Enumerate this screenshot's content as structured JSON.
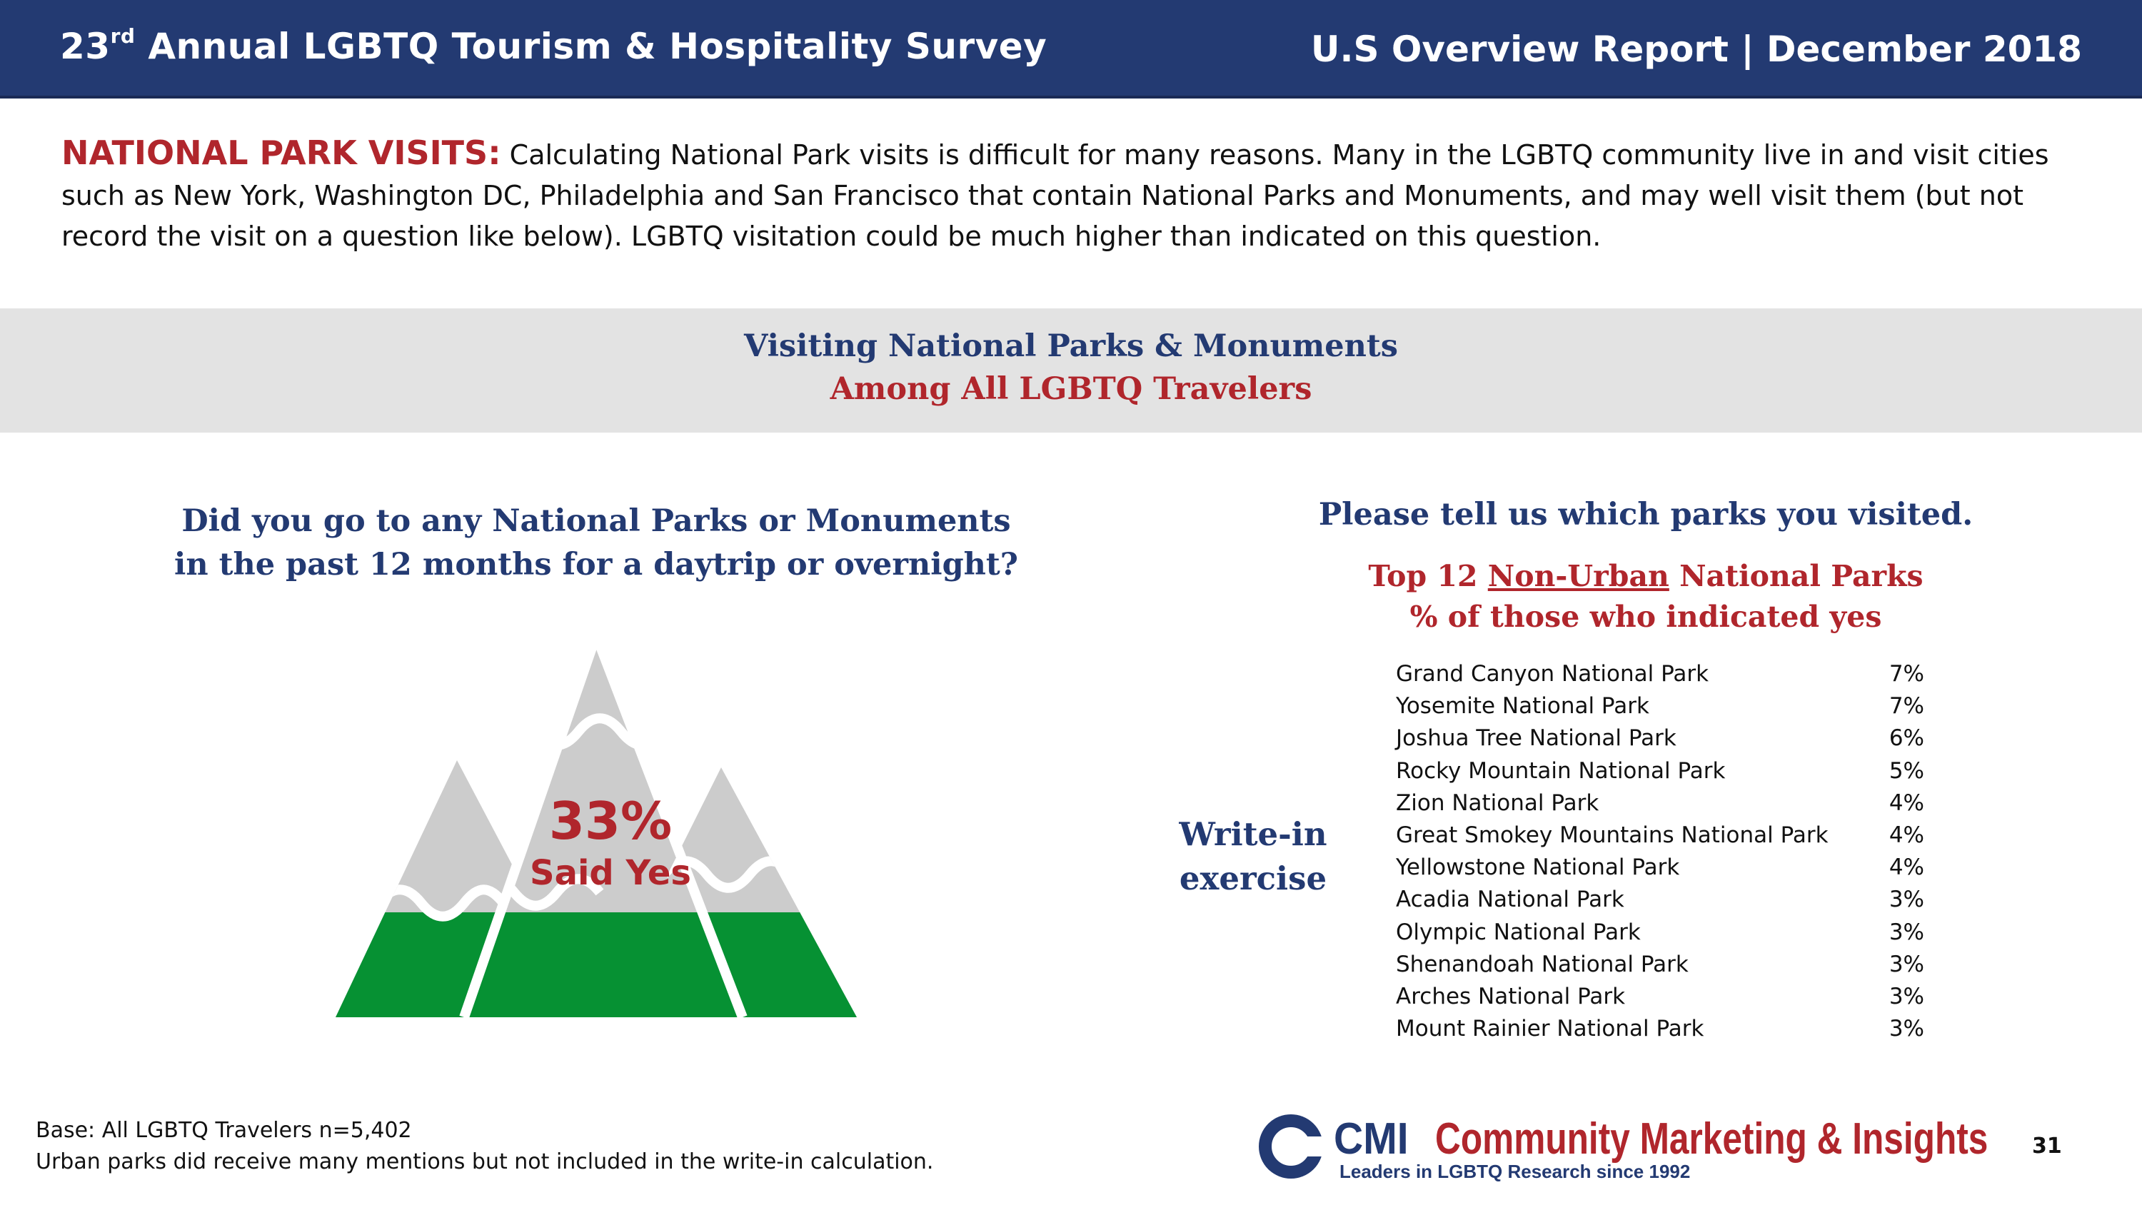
{
  "header": {
    "title_num": "23",
    "title_sup": "rd",
    "title_rest": " Annual LGBTQ Tourism & Hospitality Survey",
    "report": "U.S Overview Report | December 2018"
  },
  "intro": {
    "label": "NATIONAL PARK VISITS:",
    "text": " Calculating National Park visits is difficult for many reasons. Many in the LGBTQ community live in and visit cities such as New York, Washington DC, Philadelphia and San Francisco that contain National Parks and Monuments, and may well visit them (but not record the visit on a question like below).  LGBTQ visitation could be much higher than indicated on this question."
  },
  "band": {
    "line1": "Visiting National Parks & Monuments",
    "line2": "Among All LGBTQ Travelers"
  },
  "left_question": {
    "line1": "Did you go to any National Parks or Monuments",
    "line2": "in the past 12 months for a daytrip or overnight?"
  },
  "result": {
    "value": 33,
    "pct_label": "33%",
    "label": "Said Yes"
  },
  "writein": {
    "line1": "Write-in",
    "line2": "exercise"
  },
  "right_question": {
    "title": "Please tell us which parks you visited.",
    "sub1_pre": "Top 12 ",
    "sub1_underline": "Non-Urban",
    "sub1_post": " National Parks",
    "sub2": "% of those who indicated yes"
  },
  "parks": [
    {
      "name": "Grand Canyon National Park",
      "pct": "7%"
    },
    {
      "name": "Yosemite National Park",
      "pct": "7%"
    },
    {
      "name": "Joshua Tree National Park",
      "pct": "6%"
    },
    {
      "name": "Rocky Mountain National Park",
      "pct": "5%"
    },
    {
      "name": "Zion National Park",
      "pct": "4%"
    },
    {
      "name": "Great Smokey Mountains National Park",
      "pct": "4%"
    },
    {
      "name": "Yellowstone National Park",
      "pct": "4%"
    },
    {
      "name": "Acadia National Park",
      "pct": "3%"
    },
    {
      "name": "Olympic National Park",
      "pct": "3%"
    },
    {
      "name": "Shenandoah National Park",
      "pct": "3%"
    },
    {
      "name": "Arches National Park",
      "pct": "3%"
    },
    {
      "name": "Mount Rainier National Park",
      "pct": "3%"
    }
  ],
  "footer": {
    "base": "Base: All LGBTQ Travelers n=5,402",
    "note": "Urban parks did receive many mentions but not included in the write-in calculation.",
    "page": "31"
  },
  "logo": {
    "cmi": "CMI",
    "name": "Community Marketing & Insights",
    "tagline": "Leaders in LGBTQ Research since 1992"
  },
  "colors": {
    "navy": "#233a72",
    "red": "#b0262c",
    "green": "#069133",
    "grey": "#cccccc",
    "band": "#e3e3e3"
  }
}
